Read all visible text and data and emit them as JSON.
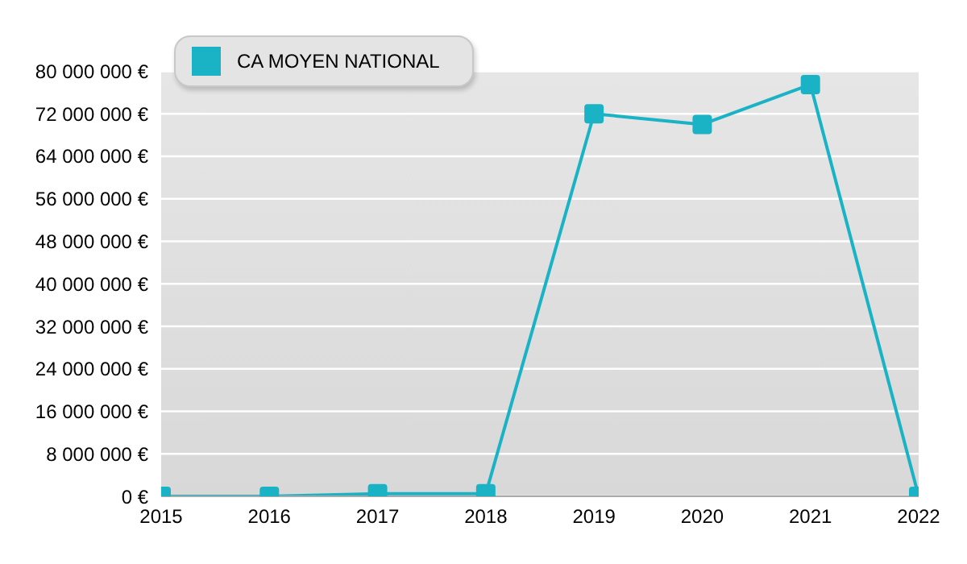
{
  "chart_data": {
    "type": "line",
    "x": [
      2015,
      2016,
      2017,
      2018,
      2019,
      2020,
      2021,
      2022
    ],
    "series": [
      {
        "name": "CA MOYEN NATIONAL",
        "color": "#1ab3c6",
        "values": [
          0,
          0,
          500000,
          500000,
          72000000,
          70000000,
          77500000,
          0
        ]
      }
    ],
    "xlim": [
      2015,
      2022
    ],
    "xticks": [
      2015,
      2016,
      2017,
      2018,
      2019,
      2020,
      2021,
      2022
    ],
    "ylim": [
      0,
      80000000
    ],
    "yticks": [
      {
        "value": 0,
        "label": "0 €"
      },
      {
        "value": 8000000,
        "label": "8 000 000 €"
      },
      {
        "value": 16000000,
        "label": "16 000 000 €"
      },
      {
        "value": 24000000,
        "label": "24 000 000 €"
      },
      {
        "value": 32000000,
        "label": "32 000 000 €"
      },
      {
        "value": 40000000,
        "label": "40 000 000 €"
      },
      {
        "value": 48000000,
        "label": "48 000 000 €"
      },
      {
        "value": 56000000,
        "label": "56 000 000 €"
      },
      {
        "value": 64000000,
        "label": "64 000 000 €"
      },
      {
        "value": 72000000,
        "label": "72 000 000 €"
      },
      {
        "value": 80000000,
        "label": "80 000 000 €"
      }
    ],
    "grid": "y",
    "legend": "top left",
    "marker": "square",
    "line_style": "solid"
  }
}
